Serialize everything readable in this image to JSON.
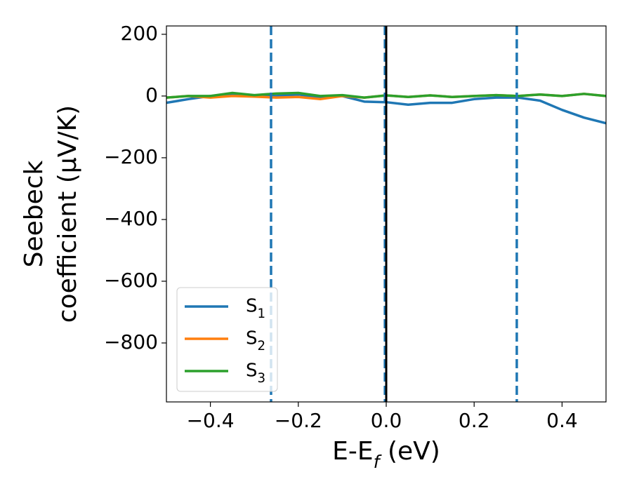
{
  "chart_data": {
    "type": "line",
    "xlabel": "E-E_f (eV)",
    "ylabel": [
      "Seebeck",
      "coefficient  (μV/K)"
    ],
    "x": [
      -0.5,
      -0.45,
      -0.4,
      -0.35,
      -0.3,
      -0.25,
      -0.2,
      -0.15,
      -0.1,
      -0.05,
      0,
      0.05,
      0.1,
      0.15,
      0.2,
      0.25,
      0.3,
      0.35,
      0.4,
      0.45,
      0.5
    ],
    "series": [
      {
        "name": "S_1",
        "color": "#1f77b4",
        "values": [
          -22,
          -10,
          0,
          5,
          2,
          0,
          5,
          -5,
          0,
          -18,
          -20,
          -28,
          -22,
          -22,
          -10,
          -5,
          -5,
          -15,
          -45,
          -70,
          -88
        ]
      },
      {
        "name": "S_2",
        "color": "#ff7f0e",
        "values": [
          -5,
          0,
          -5,
          0,
          -2,
          -5,
          -3,
          -10,
          0,
          -5,
          2,
          -3,
          2,
          -3,
          0,
          3,
          0,
          5,
          0,
          7,
          0
        ]
      },
      {
        "name": "S_3",
        "color": "#2ca02c",
        "values": [
          -5,
          0,
          0,
          10,
          3,
          8,
          10,
          0,
          3,
          -5,
          2,
          -3,
          2,
          -3,
          0,
          3,
          0,
          5,
          0,
          7,
          0
        ]
      }
    ],
    "vlines": [
      {
        "x": -0.262,
        "color": "#1f77b4",
        "style": "dashed"
      },
      {
        "x": -0.003,
        "color": "#1f77b4",
        "style": "dashed"
      },
      {
        "x": 0,
        "color": "#000000",
        "style": "solid"
      },
      {
        "x": 0.297,
        "color": "#1f77b4",
        "style": "dashed"
      }
    ],
    "xlim": [
      -0.5,
      0.5
    ],
    "ylim": [
      -991,
      227
    ],
    "xticks": [
      {
        "value": -0.4,
        "label": "−0.4"
      },
      {
        "value": -0.2,
        "label": "−0.2"
      },
      {
        "value": 0,
        "label": "0.0"
      },
      0.2,
      0.4
    ],
    "yticks": [
      200,
      0,
      {
        "value": -200,
        "label": "−200"
      },
      {
        "value": -400,
        "label": "−400"
      },
      {
        "value": -600,
        "label": "−600"
      },
      {
        "value": -800,
        "label": "−800"
      }
    ],
    "legend": "lower left"
  }
}
